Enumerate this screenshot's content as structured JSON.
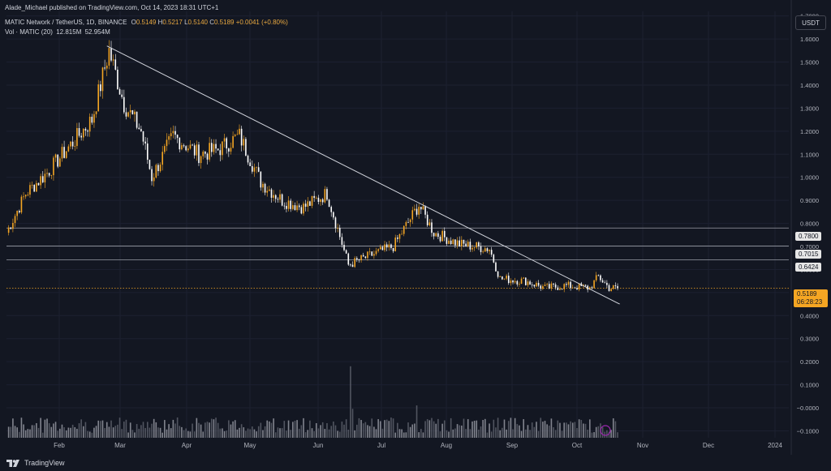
{
  "header": {
    "publisher": "Alade_Michael published on TradingView.com, Oct 14, 2023 18:31 UTC+1",
    "symbol_line": "MATIC Network / TetherUS, 1D, BINANCE",
    "ohlc": {
      "o_key": "O",
      "o": "0.5149",
      "h_key": "H",
      "h": "0.5217",
      "l_key": "L",
      "l": "0.5140",
      "c_key": "C",
      "c": "0.5189",
      "chg": "+0.0041 (+0.80%)"
    },
    "vol_line": "Vol · MATIC (20)",
    "vol_values": [
      "12.815M",
      "52.954M"
    ]
  },
  "unit_button": "USDT",
  "brand": "TradingView",
  "colors": {
    "background": "#131722",
    "up": "#f5a623",
    "down": "#ffffff",
    "grid": "#1f2330",
    "label_orange": "#f5a623"
  },
  "chart_data": {
    "type": "candlestick",
    "x_ticks": [
      "Feb",
      "Mar",
      "Apr",
      "May",
      "Jun",
      "Jul",
      "Aug",
      "Sep",
      "Oct",
      "Nov",
      "Dec",
      "2024"
    ],
    "y_ticks": [
      "1.7000",
      "1.6000",
      "1.5000",
      "1.4000",
      "1.3000",
      "1.2000",
      "1.1000",
      "1.0000",
      "0.9000",
      "0.8000",
      "0.7000",
      "0.6000",
      "0.5000",
      "0.4000",
      "0.3000",
      "0.2000",
      "0.1000",
      "−0.0000",
      "−0.1000"
    ],
    "ylim": [
      -0.13,
      1.72
    ],
    "price_series": {
      "description_months": [
        "Jan",
        "Feb",
        "Mar",
        "Apr",
        "May",
        "Jun",
        "Jul",
        "Aug",
        "Sep",
        "Oct"
      ],
      "key_points": [
        [
          "Jan 1",
          0.76
        ],
        [
          "Jan 10",
          0.93
        ],
        [
          "Jan 20",
          1.02
        ],
        [
          "Jan 30",
          1.13
        ],
        [
          "Feb 10",
          1.25
        ],
        [
          "Feb 18",
          1.55
        ],
        [
          "Feb 25",
          1.32
        ],
        [
          "Mar 5",
          1.2
        ],
        [
          "Mar 10",
          1.0
        ],
        [
          "Mar 20",
          1.18
        ],
        [
          "Apr 1",
          1.1
        ],
        [
          "Apr 10",
          1.12
        ],
        [
          "Apr 20",
          1.18
        ],
        [
          "Apr 30",
          0.98
        ],
        [
          "May 10",
          0.9
        ],
        [
          "May 20",
          0.87
        ],
        [
          "May 31",
          0.93
        ],
        [
          "Jun 10",
          0.62
        ],
        [
          "Jun 20",
          0.66
        ],
        [
          "Jul 1",
          0.7
        ],
        [
          "Jul 13",
          0.88
        ],
        [
          "Jul 20",
          0.76
        ],
        [
          "Aug 1",
          0.71
        ],
        [
          "Aug 15",
          0.69
        ],
        [
          "Aug 20",
          0.56
        ],
        [
          "Sep 1",
          0.55
        ],
        [
          "Sep 10",
          0.52
        ],
        [
          "Sep 20",
          0.53
        ],
        [
          "Oct 1",
          0.52
        ],
        [
          "Oct 5",
          0.57
        ],
        [
          "Oct 10",
          0.52
        ],
        [
          "Oct 14",
          0.5189
        ]
      ]
    },
    "volume_ylim": [
      0,
      0.5
    ],
    "trendline": {
      "from": [
        "Feb 17",
        1.57
      ],
      "to": [
        "Oct 15",
        0.45
      ]
    },
    "horizontal_levels": [
      {
        "value": 0.78,
        "label": "0.7800"
      },
      {
        "value": 0.7015,
        "label": "0.7015"
      },
      {
        "value": 0.6424,
        "label": "0.6424"
      }
    ],
    "last_price": {
      "value": 0.5189,
      "label": "0.5189",
      "countdown": "06:28:23"
    }
  }
}
